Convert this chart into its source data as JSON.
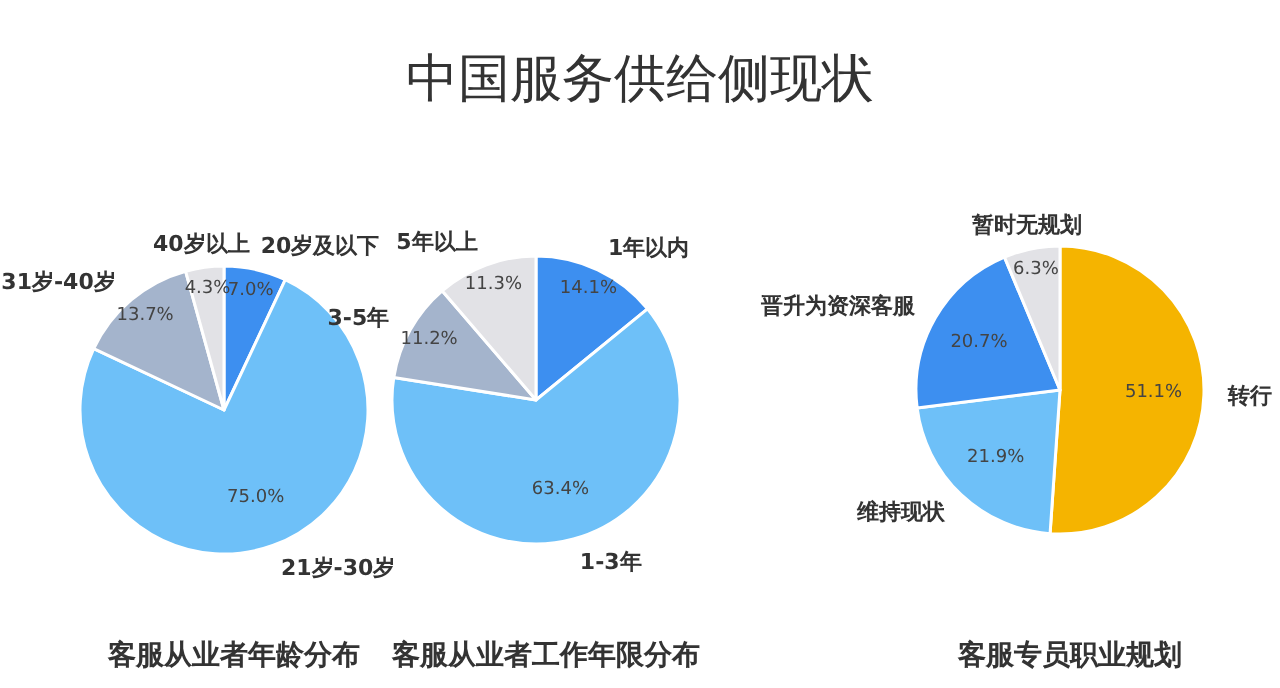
{
  "chart_data": [
    {
      "type": "other",
      "title": "中国服务供给侧现状"
    },
    {
      "type": "pie",
      "title": "客服从业者年龄分布",
      "categories": [
        "20岁及以下",
        "21岁-30岁",
        "31岁-40岁",
        "40岁以上"
      ],
      "values": [
        7.0,
        75.0,
        13.7,
        4.3
      ],
      "colors": [
        "#3d8ff0",
        "#6ec0f8",
        "#a4b4cc",
        "#e2e2e6"
      ],
      "value_labels": [
        "7.0%",
        "75.0%",
        "13.7%",
        "4.3%"
      ],
      "data_labels": true,
      "legend": false
    },
    {
      "type": "pie",
      "title": "客服从业者工作年限分布",
      "categories": [
        "1年以内",
        "1-3年",
        "3-5年",
        "5年以上"
      ],
      "values": [
        14.1,
        63.4,
        11.2,
        11.3
      ],
      "colors": [
        "#3d8ff0",
        "#6ec0f8",
        "#a4b4cc",
        "#e2e2e6"
      ],
      "value_labels": [
        "14.1%",
        "63.4%",
        "11.2%",
        "11.3%"
      ],
      "data_labels": true,
      "legend": false
    },
    {
      "type": "pie",
      "title": "客服专员职业规划",
      "categories": [
        "转行",
        "维持现状",
        "晋升为资深客服",
        "暂时无规划"
      ],
      "values": [
        51.1,
        21.9,
        20.7,
        6.3
      ],
      "colors": [
        "#f5b400",
        "#6ec0f8",
        "#3d8ff0",
        "#e2e2e6"
      ],
      "value_labels": [
        "51.1%",
        "21.9%",
        "20.7%",
        "6.3%"
      ],
      "data_labels": true,
      "legend": false
    }
  ]
}
